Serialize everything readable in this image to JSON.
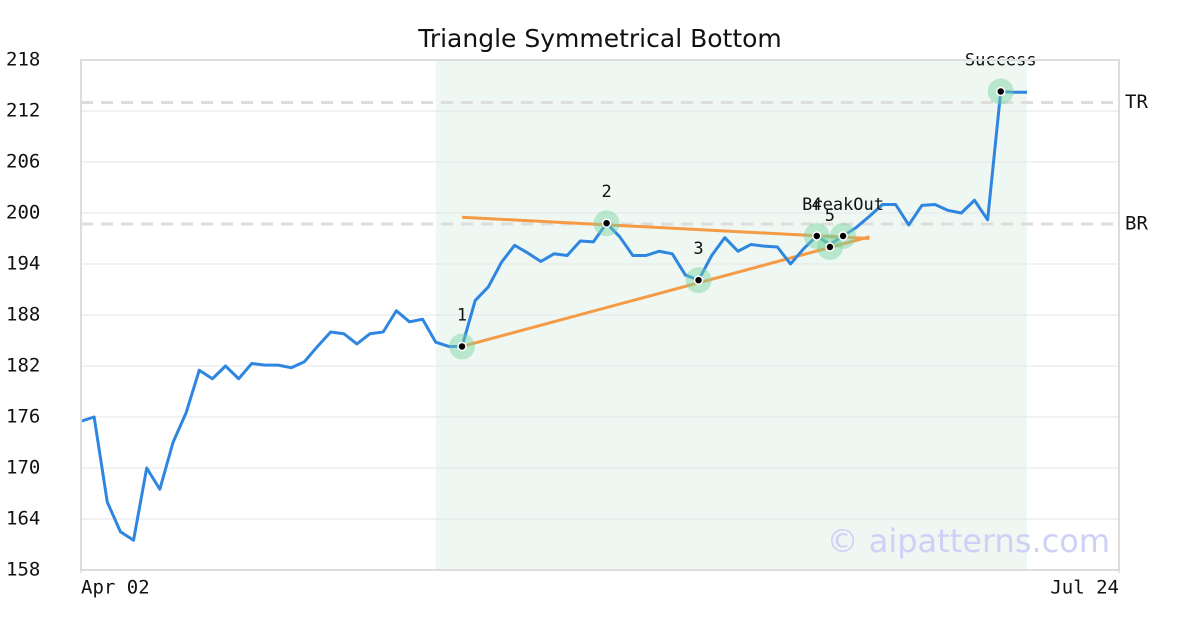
{
  "chart_data": {
    "type": "line",
    "title": "Triangle Symmetrical Bottom",
    "x": [
      0,
      1,
      2,
      3,
      4,
      5,
      6,
      7,
      8,
      9,
      10,
      11,
      12,
      13,
      14,
      15,
      16,
      17,
      18,
      19,
      20,
      21,
      22,
      23,
      24,
      25,
      26,
      27,
      28,
      29,
      30,
      31,
      32,
      33,
      34,
      35,
      36,
      37,
      38,
      39,
      40,
      41,
      42,
      43,
      44,
      45,
      46,
      47,
      48,
      49,
      50,
      51,
      52,
      53,
      54,
      55,
      56,
      57,
      58,
      59,
      60,
      61,
      62,
      63,
      64,
      65,
      66,
      67,
      68,
      69,
      70,
      71,
      72
    ],
    "series": [
      {
        "name": "Price",
        "color": "#2e86e0",
        "values": [
          175.5,
          176,
          166,
          162.5,
          161.5,
          170,
          167.5,
          173,
          176.5,
          181.5,
          180.5,
          182,
          180.5,
          182.3,
          182.1,
          182.1,
          181.8,
          182.5,
          184.3,
          186,
          185.8,
          184.6,
          185.8,
          186,
          188.5,
          187.2,
          187.5,
          184.8,
          184.3,
          184.3,
          189.7,
          191.3,
          194.2,
          196.2,
          195.3,
          194.3,
          195.2,
          195,
          196.7,
          196.6,
          198.8,
          197.2,
          195,
          195,
          195.5,
          195.2,
          192.7,
          192.1,
          195,
          197.1,
          195.5,
          196.3,
          196.1,
          196,
          194,
          195.8,
          197.3,
          196.3,
          197.3,
          198.3,
          199.6,
          201,
          201,
          198.6,
          200.9,
          201,
          200.3,
          200,
          201.5,
          199.2,
          214.3,
          214.2,
          214.2
        ]
      }
    ],
    "xlim": [
      0,
      79
    ],
    "xticks": [
      {
        "value": 0,
        "label": "Apr 02"
      },
      {
        "value": 79,
        "label": "Jul 24"
      }
    ],
    "ylim": [
      158,
      218
    ],
    "yticks": [
      158,
      164,
      170,
      176,
      182,
      188,
      194,
      200,
      206,
      212,
      218
    ],
    "grid": true,
    "highlight": {
      "x": [
        27,
        72
      ],
      "color": "#eef7f2"
    },
    "trend_lines": {
      "color": "#f59a45",
      "lines": [
        {
          "x": [
            29,
            60
          ],
          "y": [
            199.5,
            197
          ]
        },
        {
          "x": [
            29,
            60
          ],
          "y": [
            184.3,
            197.2
          ]
        }
      ]
    },
    "reference_lines": [
      {
        "label": "TR",
        "y": 213
      },
      {
        "label": "BR",
        "y": 198.7
      }
    ],
    "markers": [
      {
        "label": "1",
        "x": 29,
        "y": 184.3
      },
      {
        "label": "2",
        "x": 40,
        "y": 198.8
      },
      {
        "label": "3",
        "x": 47,
        "y": 192.1
      },
      {
        "label": "4",
        "x": 56,
        "y": 197.3
      },
      {
        "label": "5",
        "x": 57,
        "y": 196.0
      },
      {
        "label": "BreakOut",
        "x": 58,
        "y": 197.3
      },
      {
        "label": "Success",
        "x": 70,
        "y": 214.3
      }
    ],
    "watermark": "© aipatterns.com"
  }
}
